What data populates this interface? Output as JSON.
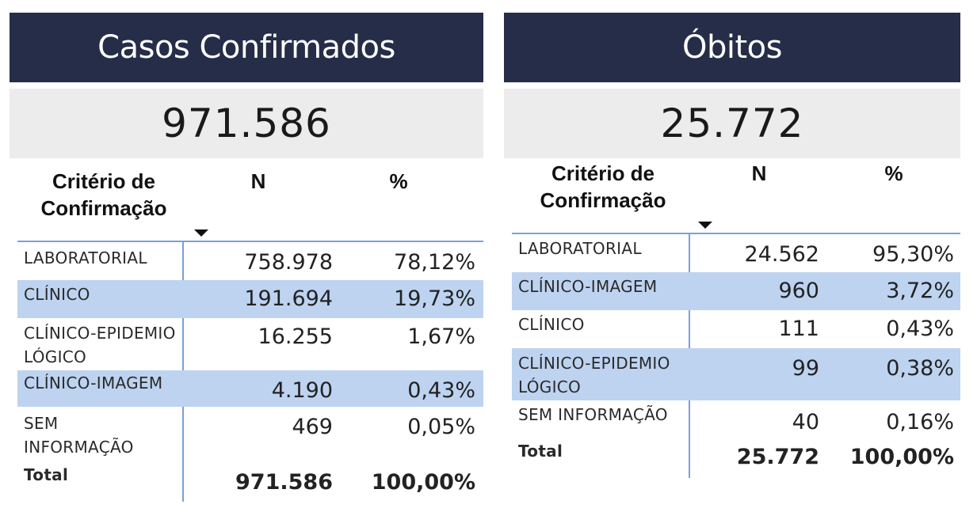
{
  "panels": [
    {
      "title": "Casos Confirmados",
      "kpi": "971.586",
      "headers": {
        "criterio": "Critério de Confirmação",
        "n": "N",
        "pct": "%"
      },
      "rows": [
        {
          "criterio": "LABORATORIAL",
          "n": "758.978",
          "pct": "78,12%"
        },
        {
          "criterio": "CLÍNICO",
          "n": "191.694",
          "pct": "19,73%"
        },
        {
          "criterio": "CLÍNICO-EPIDEMIOLÓGICO",
          "n": "16.255",
          "pct": "1,67%"
        },
        {
          "criterio": "CLÍNICO-IMAGEM",
          "n": "4.190",
          "pct": "0,43%"
        },
        {
          "criterio": "SEM INFORMAÇÃO",
          "n": "469",
          "pct": "0,05%"
        }
      ],
      "total": {
        "label": "Total",
        "n": "971.586",
        "pct": "100,00%"
      }
    },
    {
      "title": "Óbitos",
      "kpi": "25.772",
      "headers": {
        "criterio": "Critério de Confirmação",
        "n": "N",
        "pct": "%"
      },
      "rows": [
        {
          "criterio": "LABORATORIAL",
          "n": "24.562",
          "pct": "95,30%"
        },
        {
          "criterio": "CLÍNICO-IMAGEM",
          "n": "960",
          "pct": "3,72%"
        },
        {
          "criterio": "CLÍNICO",
          "n": "111",
          "pct": "0,43%"
        },
        {
          "criterio": "CLÍNICO-EPIDEMIOLÓGICO",
          "n": "99",
          "pct": "0,38%"
        },
        {
          "criterio": "SEM INFORMAÇÃO",
          "n": "40",
          "pct": "0,16%"
        }
      ],
      "total": {
        "label": "Total",
        "n": "25.772",
        "pct": "100,00%"
      }
    }
  ],
  "colors": {
    "header_bg": "#252d48",
    "kpi_bg": "#ececec",
    "row_alt": "#bdd3f0",
    "grid_line": "#7aa0d8"
  }
}
